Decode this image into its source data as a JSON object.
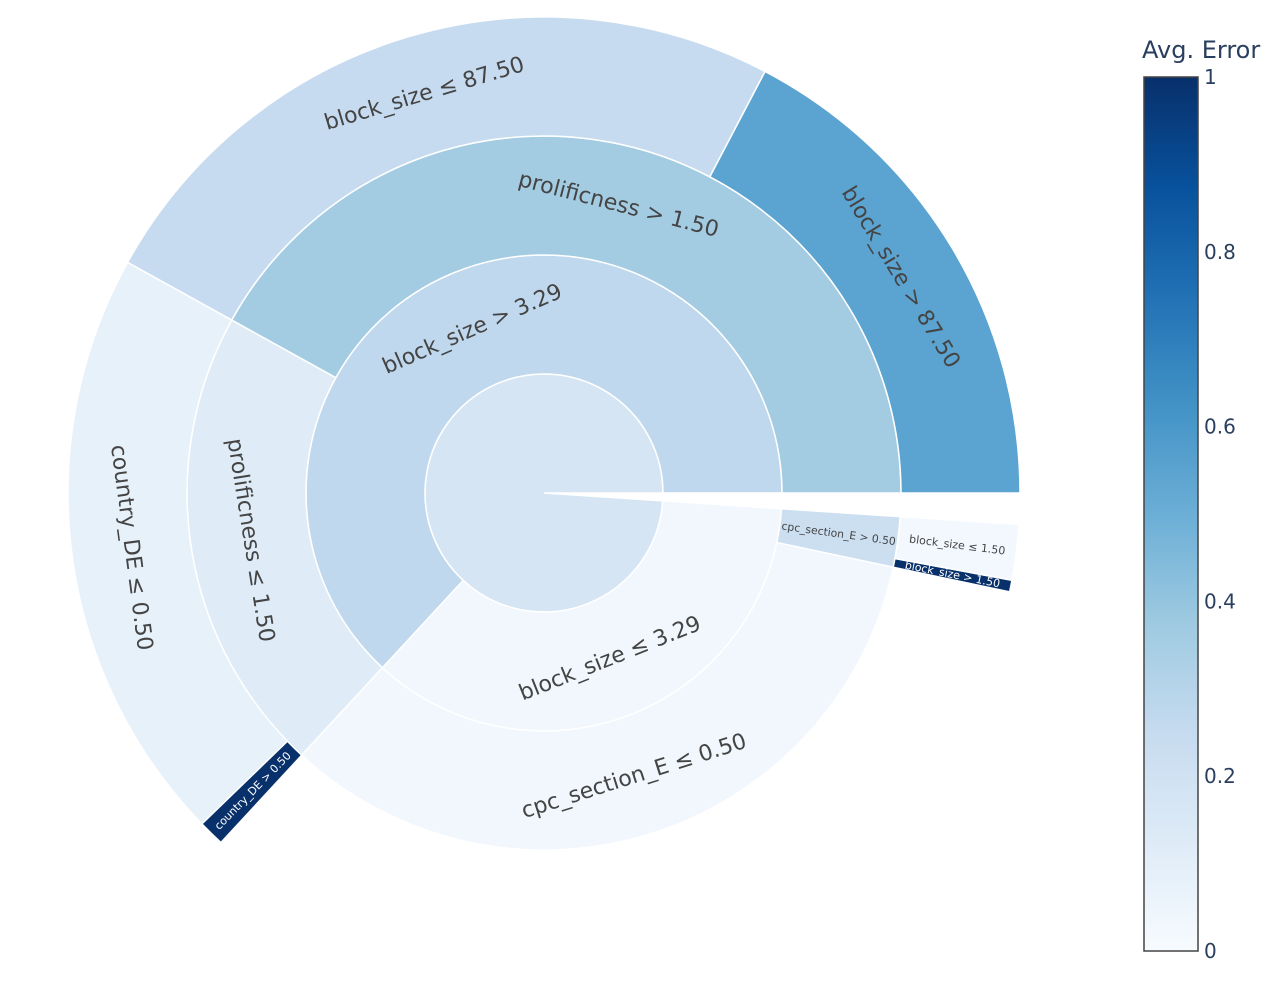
{
  "chart_data": {
    "type": "sunburst",
    "colorbar": {
      "title": "Avg. Error",
      "range": [
        0,
        1
      ],
      "ticks": [
        "0",
        "0.2",
        "0.4",
        "0.6",
        "0.8",
        "1"
      ],
      "colorscale": [
        "#f7fbff",
        "#deebf7",
        "#c6dbef",
        "#9ecae1",
        "#6baed6",
        "#4292c6",
        "#2171b5",
        "#08519c",
        "#08306b"
      ]
    },
    "nodes": [
      {
        "id": "root",
        "label": "",
        "parent": null,
        "value": 1.0,
        "error": 0.17
      },
      {
        "id": "n1",
        "label": "block_size > 3.29",
        "parent": "root",
        "value": 0.638,
        "error": 0.27
      },
      {
        "id": "n2",
        "label": "block_size ≤ 3.29",
        "parent": "root",
        "value": 0.362,
        "error": 0.03
      },
      {
        "id": "n3",
        "label": "prolificness > 1.50",
        "parent": "n1",
        "value": 0.424,
        "error": 0.36
      },
      {
        "id": "n4",
        "label": "prolificness ≤ 1.50",
        "parent": "n1",
        "value": 0.214,
        "error": 0.12
      },
      {
        "id": "n5",
        "label": "cpc_section_E ≤ 0.50",
        "parent": "n2",
        "value": 0.339,
        "error": 0.03
      },
      {
        "id": "n6",
        "label": "cpc_section_E > 0.50",
        "parent": "n2",
        "value": 0.023,
        "error": 0.22
      },
      {
        "id": "n7",
        "label": "block_size > 87.50",
        "parent": "n3",
        "value": 0.175,
        "error": 0.55
      },
      {
        "id": "n8",
        "label": "block_size ≤ 87.50",
        "parent": "n3",
        "value": 0.249,
        "error": 0.25
      },
      {
        "id": "n9",
        "label": "country_DE ≤ 0.50",
        "parent": "n4",
        "value": 0.205,
        "error": 0.08
      },
      {
        "id": "n10",
        "label": "country_DE > 0.50",
        "parent": "n4",
        "value": 0.009,
        "error": 1.0
      },
      {
        "id": "n11",
        "label": "block_size > 1.50",
        "parent": "n6",
        "value": 0.004,
        "error": 1.0
      },
      {
        "id": "n12",
        "label": "block_size ≤ 1.50",
        "parent": "n6",
        "value": 0.019,
        "error": 0.02
      }
    ]
  }
}
